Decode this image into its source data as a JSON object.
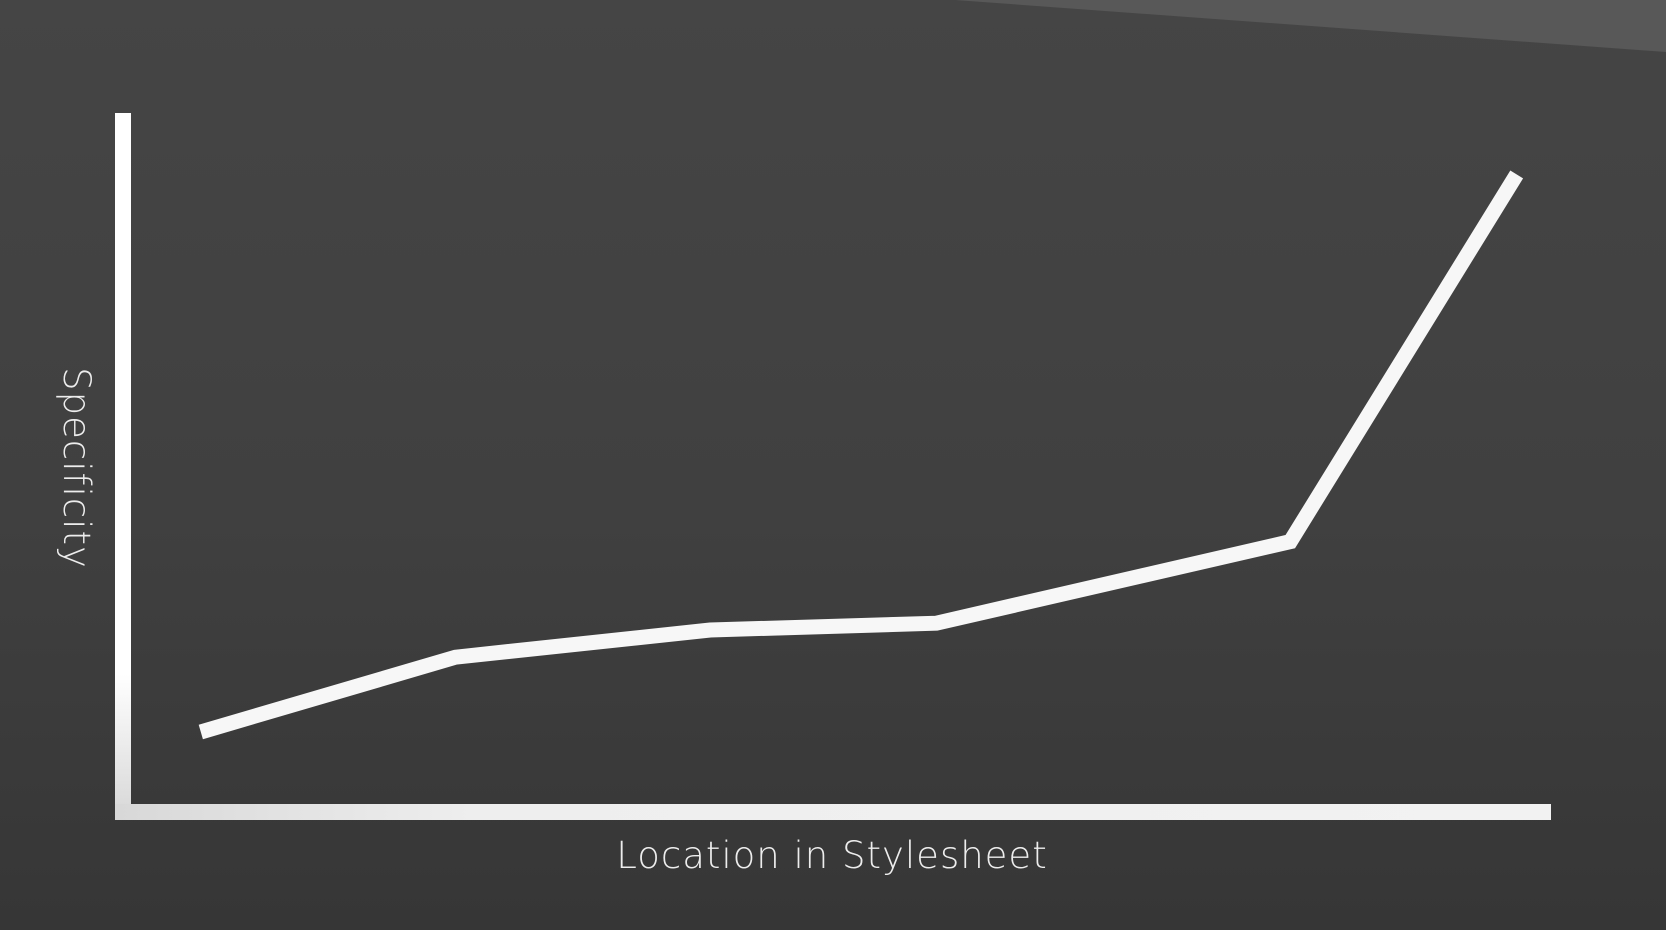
{
  "chart_data": {
    "type": "line",
    "title": "",
    "xlabel": "Location in Stylesheet",
    "ylabel": "Specificity",
    "xlim": [
      0,
      100
    ],
    "ylim": [
      0,
      100
    ],
    "x_ticks": false,
    "y_ticks": false,
    "grid": false,
    "legend": "none",
    "series": [
      {
        "points": [
          {
            "x": 5,
            "y": 10
          },
          {
            "x": 23,
            "y": 21
          },
          {
            "x": 41,
            "y": 25
          },
          {
            "x": 57,
            "y": 26
          },
          {
            "x": 82,
            "y": 38
          },
          {
            "x": 98,
            "y": 92
          }
        ],
        "color": "#f7f7f7"
      }
    ]
  },
  "colors": {
    "background": "#424242",
    "line": "#f7f7f7",
    "axis": "#f2f2f2",
    "text": "#ededed"
  }
}
